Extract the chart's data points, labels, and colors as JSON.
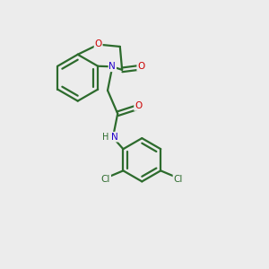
{
  "bg_color": "#ececec",
  "bond_color": "#2d6b2d",
  "N_color": "#2200cc",
  "O_color": "#cc0000",
  "Cl_color": "#2d6b2d",
  "H_color": "#2d6b2d",
  "lw": 1.6,
  "fig_size": [
    3.0,
    3.0
  ],
  "dpi": 100,
  "xlim": [
    0,
    10
  ],
  "ylim": [
    0,
    10
  ]
}
